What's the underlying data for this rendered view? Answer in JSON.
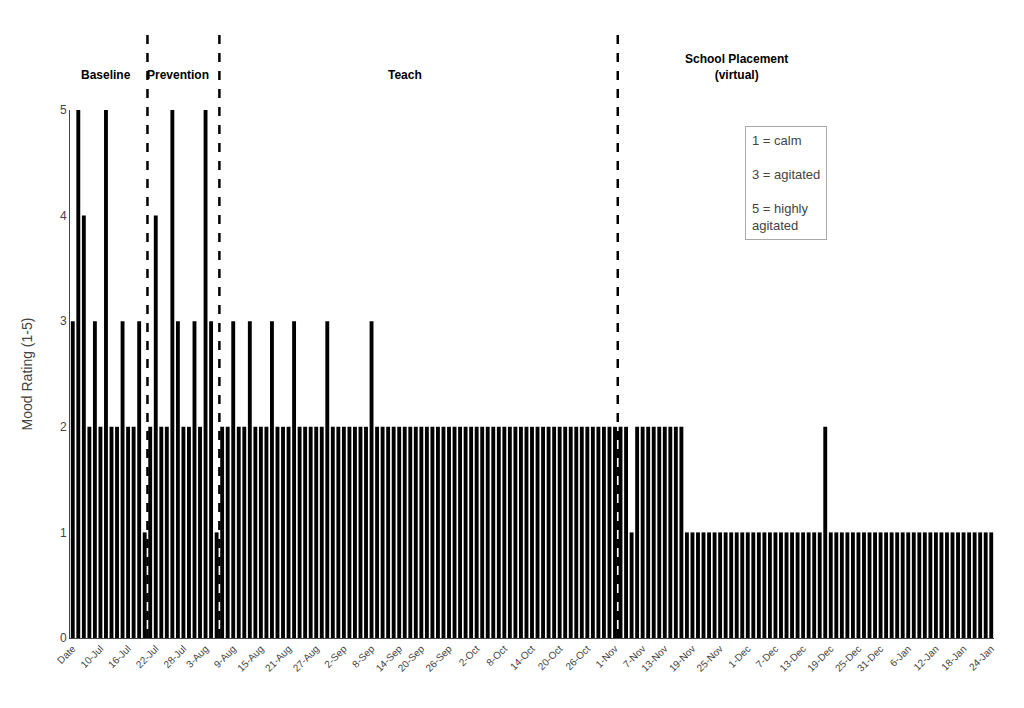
{
  "chart_data": {
    "type": "bar",
    "ylabel": "Mood Rating (1-5)",
    "color": "#000000",
    "ylim": [
      0,
      5
    ],
    "yticks": [
      0,
      1,
      2,
      3,
      4,
      5
    ],
    "grid": false,
    "categories": [
      "Date",
      null,
      null,
      null,
      null,
      "10-Jul",
      null,
      null,
      null,
      null,
      "16-Jul",
      null,
      null,
      null,
      null,
      "22-Jul",
      null,
      null,
      null,
      null,
      "28-Jul",
      null,
      null,
      null,
      "3-Aug",
      null,
      null,
      null,
      null,
      "9-Aug",
      null,
      null,
      null,
      null,
      "15-Aug",
      null,
      null,
      null,
      null,
      "21-Aug",
      null,
      null,
      null,
      null,
      "27-Aug",
      null,
      null,
      null,
      null,
      "2-Sep",
      null,
      null,
      null,
      null,
      "8-Sep",
      null,
      null,
      null,
      null,
      "14-Sep",
      null,
      null,
      null,
      "20-Sep",
      null,
      null,
      null,
      null,
      "26-Sep",
      null,
      null,
      null,
      null,
      "2-Oct",
      null,
      null,
      null,
      null,
      "8-Oct",
      null,
      null,
      null,
      null,
      "14-Oct",
      null,
      null,
      null,
      null,
      "20-Oct",
      null,
      null,
      null,
      null,
      "26-Oct",
      null,
      null,
      null,
      null,
      "1-Nov",
      null,
      null,
      null,
      null,
      "7-Nov",
      null,
      null,
      null,
      "13-Nov",
      null,
      null,
      null,
      null,
      "19-Nov",
      null,
      null,
      null,
      null,
      "25-Nov",
      null,
      null,
      null,
      null,
      "1-Dec",
      null,
      null,
      null,
      null,
      "7-Dec",
      null,
      null,
      null,
      null,
      "13-Dec",
      null,
      null,
      null,
      null,
      "19-Dec",
      null,
      null,
      null,
      null,
      "25-Dec",
      null,
      null,
      null,
      "31-Dec",
      null,
      null,
      null,
      null,
      "6-Jan",
      null,
      null,
      null,
      null,
      "12-Jan",
      null,
      null,
      null,
      null,
      "18-Jan",
      null,
      null,
      null,
      null,
      "24-Jan"
    ],
    "values": [
      3,
      5,
      4,
      2,
      3,
      2,
      5,
      2,
      2,
      3,
      2,
      2,
      3,
      1,
      2,
      4,
      2,
      2,
      5,
      3,
      2,
      2,
      3,
      2,
      5,
      3,
      1,
      2,
      2,
      3,
      2,
      2,
      3,
      2,
      2,
      2,
      3,
      2,
      2,
      2,
      3,
      2,
      2,
      2,
      2,
      2,
      3,
      2,
      2,
      2,
      2,
      2,
      2,
      2,
      3,
      2,
      2,
      2,
      2,
      2,
      2,
      2,
      2,
      2,
      2,
      2,
      2,
      2,
      2,
      2,
      2,
      2,
      2,
      2,
      2,
      2,
      2,
      2,
      2,
      2,
      2,
      2,
      2,
      2,
      2,
      2,
      2,
      2,
      2,
      2,
      2,
      2,
      2,
      2,
      2,
      2,
      2,
      2,
      2,
      2,
      2,
      1,
      2,
      2,
      2,
      2,
      2,
      2,
      2,
      2,
      2,
      1,
      1,
      1,
      1,
      1,
      1,
      1,
      1,
      1,
      1,
      1,
      1,
      1,
      1,
      1,
      1,
      1,
      1,
      1,
      1,
      1,
      1,
      1,
      1,
      1,
      2,
      1,
      1,
      1,
      1,
      1,
      1,
      1,
      1,
      1,
      1,
      1,
      1,
      1,
      1,
      1,
      1,
      1,
      1,
      1,
      1,
      1,
      1,
      1,
      1,
      1,
      1,
      1,
      1,
      1,
      1
    ],
    "dividers": [
      13.5,
      26.5,
      98.5
    ],
    "annotations": [
      {
        "text": "Baseline",
        "x": 6
      },
      {
        "text": "Prevention",
        "x": 19
      },
      {
        "text": "Teach",
        "x": 60
      },
      {
        "text": "School Placement\n(virtual)",
        "x": 120
      }
    ],
    "legend": "upper right",
    "legend_text": "1 = calm\n\n3 = agitated\n\n5 = highly\nagitated"
  }
}
